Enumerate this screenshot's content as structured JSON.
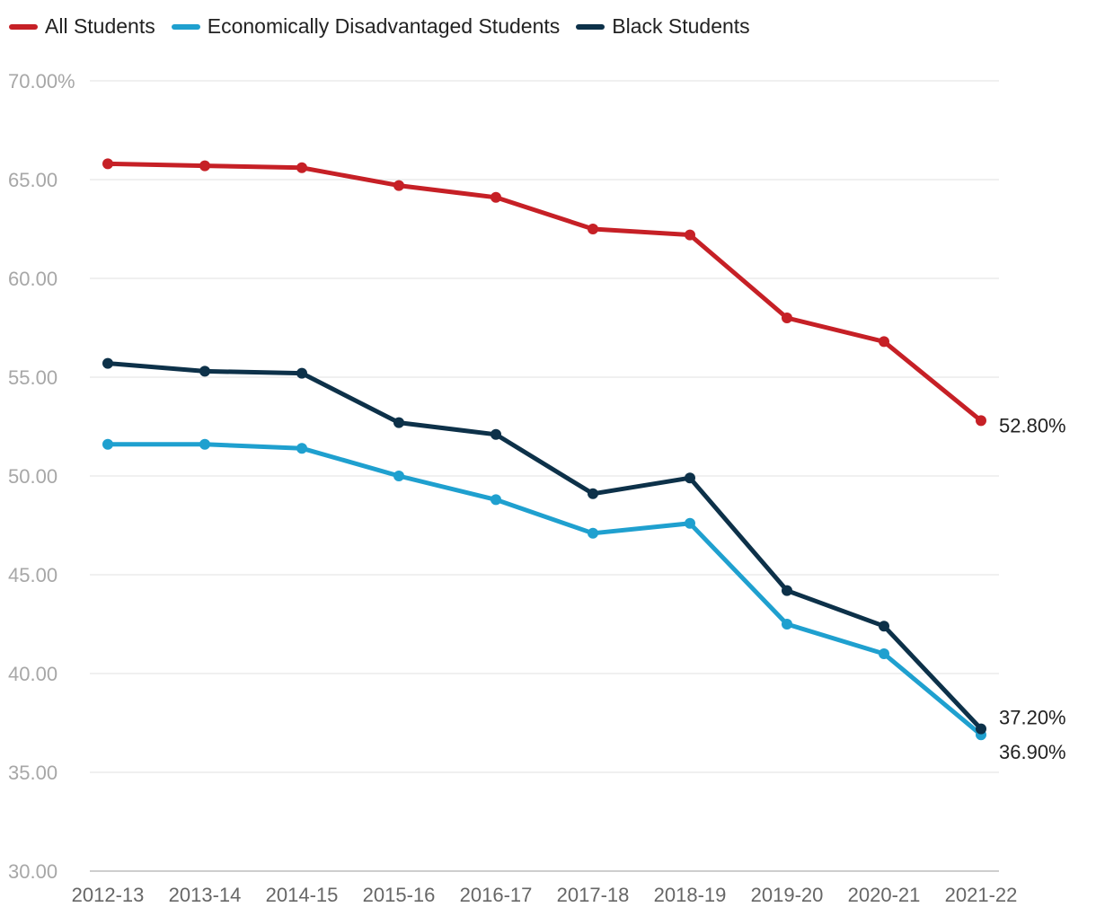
{
  "chart_data": {
    "type": "line",
    "title": "",
    "xlabel": "",
    "ylabel": "",
    "categories": [
      "2012-13",
      "2013-14",
      "2014-15",
      "2015-16",
      "2016-17",
      "2017-18",
      "2018-19",
      "2019-20",
      "2020-21",
      "2021-22"
    ],
    "ylim": [
      30,
      70
    ],
    "y_ticks": [
      {
        "value": 30,
        "label": "30.00"
      },
      {
        "value": 35,
        "label": "35.00"
      },
      {
        "value": 40,
        "label": "40.00"
      },
      {
        "value": 45,
        "label": "45.00"
      },
      {
        "value": 50,
        "label": "50.00"
      },
      {
        "value": 55,
        "label": "55.00"
      },
      {
        "value": 60,
        "label": "60.00"
      },
      {
        "value": 65,
        "label": "65.00"
      },
      {
        "value": 70,
        "label": "70.00%"
      }
    ],
    "grid": true,
    "legend_position": "top-left",
    "series": [
      {
        "name": "All Students",
        "color": "#c62026",
        "values": [
          65.8,
          65.7,
          65.6,
          64.7,
          64.1,
          62.5,
          62.2,
          58.0,
          56.8,
          52.8
        ],
        "end_label": "52.80%"
      },
      {
        "name": "Economically Disadvantaged Students",
        "color": "#1fa0cf",
        "values": [
          51.6,
          51.6,
          51.4,
          50.0,
          48.8,
          47.1,
          47.6,
          42.5,
          41.0,
          36.9
        ],
        "end_label": "36.90%"
      },
      {
        "name": "Black Students",
        "color": "#0d3149",
        "values": [
          55.7,
          55.3,
          55.2,
          52.7,
          52.1,
          49.1,
          49.9,
          44.2,
          42.4,
          37.2
        ],
        "end_label": "37.20%"
      }
    ]
  }
}
